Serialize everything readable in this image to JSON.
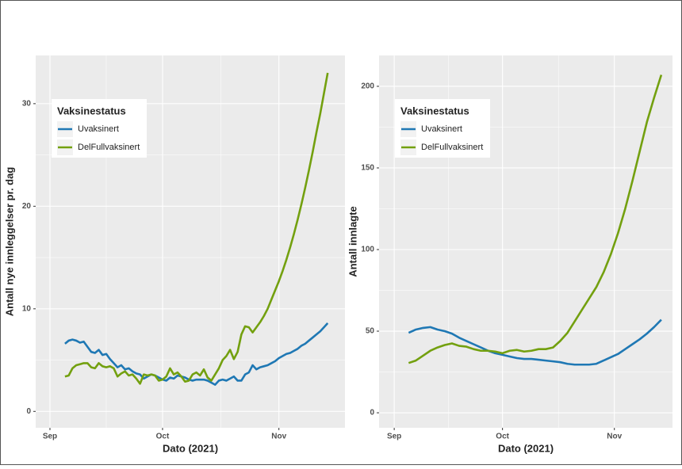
{
  "chart_data": [
    {
      "type": "line",
      "x_label": "Dato (2021)",
      "y_label": "Antall nye innleggelser pr. dag",
      "legend_title": "Vaksinestatus",
      "legend": "top-left",
      "grid": true,
      "x": [
        4,
        5,
        6,
        7,
        8,
        9,
        10,
        11,
        12,
        13,
        14,
        15,
        16,
        17,
        18,
        19,
        20,
        21,
        22,
        23,
        24,
        25,
        26,
        27,
        28,
        29,
        30,
        31,
        32,
        33,
        34,
        35,
        36,
        37,
        38,
        39,
        40,
        41,
        42,
        43,
        44,
        45,
        46,
        47,
        48,
        49,
        50,
        51,
        52,
        53,
        54,
        55,
        56,
        57,
        58,
        59,
        60,
        61,
        62,
        63,
        64,
        65,
        66,
        67,
        68,
        69,
        70,
        71,
        72,
        73,
        74
      ],
      "series": [
        {
          "name": "Uvaksinert",
          "color": "#1f78b4",
          "values": [
            6.6,
            6.9,
            7.0,
            6.9,
            6.7,
            6.8,
            6.3,
            5.8,
            5.7,
            6.0,
            5.5,
            5.6,
            5.1,
            4.7,
            4.3,
            4.5,
            4.1,
            4.2,
            3.9,
            3.7,
            3.6,
            3.2,
            3.4,
            3.6,
            3.5,
            3.3,
            3.1,
            3.0,
            3.3,
            3.2,
            3.5,
            3.4,
            3.3,
            3.1,
            3.0,
            3.1,
            3.1,
            3.1,
            3.0,
            2.8,
            2.6,
            3.0,
            3.1,
            3.0,
            3.2,
            3.4,
            3.0,
            3.0,
            3.6,
            3.8,
            4.5,
            4.1,
            4.3,
            4.4,
            4.5,
            4.7,
            4.9,
            5.2,
            5.4,
            5.6,
            5.7,
            5.9,
            6.1,
            6.4,
            6.6,
            6.9,
            7.2,
            7.5,
            7.8,
            8.2,
            8.6
          ]
        },
        {
          "name": "DelFullvaksinert",
          "color": "#73a00f",
          "values": [
            3.4,
            3.5,
            4.2,
            4.5,
            4.6,
            4.7,
            4.7,
            4.3,
            4.2,
            4.7,
            4.4,
            4.3,
            4.4,
            4.2,
            3.4,
            3.7,
            3.9,
            3.5,
            3.6,
            3.2,
            2.7,
            3.6,
            3.5,
            3.6,
            3.5,
            3.0,
            3.1,
            3.4,
            4.2,
            3.6,
            3.8,
            3.4,
            2.9,
            3.0,
            3.6,
            3.8,
            3.5,
            4.1,
            3.3,
            3.0,
            3.6,
            4.2,
            5.0,
            5.4,
            6.0,
            5.1,
            5.8,
            7.5,
            8.3,
            8.2,
            7.7,
            8.2,
            8.7,
            9.3,
            10.0,
            10.9,
            11.8,
            12.7,
            13.7,
            14.8,
            16.0,
            17.3,
            18.7,
            20.2,
            21.8,
            23.5,
            25.3,
            27.2,
            29.0,
            31.0,
            33.0
          ]
        }
      ],
      "xlim": [
        -3.8,
        78.6
      ],
      "xticks": [
        {
          "value": 0,
          "label": "Sep"
        },
        {
          "value": 30,
          "label": "Oct"
        },
        {
          "value": 61,
          "label": "Nov"
        }
      ],
      "ylim": [
        -1.6,
        34.7
      ],
      "yticks": [
        0,
        10,
        20,
        30
      ]
    },
    {
      "type": "line",
      "x_label": "Dato (2021)",
      "y_label": "Antall innlagte",
      "legend_title": "Vaksinestatus",
      "legend": "top-left",
      "grid": true,
      "x": [
        4,
        6,
        8,
        10,
        12,
        14,
        16,
        18,
        20,
        22,
        24,
        26,
        28,
        30,
        32,
        34,
        36,
        38,
        40,
        42,
        44,
        46,
        48,
        50,
        52,
        54,
        56,
        58,
        60,
        62,
        64,
        66,
        68,
        70,
        72,
        74
      ],
      "series": [
        {
          "name": "Uvaksinert",
          "color": "#1f78b4",
          "values": [
            49,
            51,
            52,
            52.5,
            51,
            50,
            48.5,
            46,
            44,
            42,
            40,
            38,
            36.5,
            35.5,
            34.5,
            33.5,
            33,
            33,
            32.5,
            32,
            31.5,
            31,
            30,
            29.5,
            29.5,
            29.5,
            30,
            32,
            34,
            36,
            39,
            42,
            45,
            48.5,
            52.5,
            57
          ]
        },
        {
          "name": "DelFullvaksinert",
          "color": "#73a00f",
          "values": [
            30.5,
            32,
            35,
            38,
            40,
            41.5,
            42.5,
            41,
            40.5,
            39,
            38,
            38,
            37.5,
            36.5,
            38,
            38.5,
            37.5,
            38,
            39,
            39,
            40,
            44,
            49,
            56,
            63,
            70,
            77,
            86,
            97,
            110,
            125,
            142,
            160,
            178,
            193,
            207
          ]
        }
      ],
      "xlim": [
        -4.2,
        77.1
      ],
      "xticks": [
        {
          "value": 0,
          "label": "Sep"
        },
        {
          "value": 30,
          "label": "Oct"
        },
        {
          "value": 61,
          "label": "Nov"
        }
      ],
      "ylim": [
        -9.2,
        218.9
      ],
      "yticks": [
        0,
        50,
        100,
        150,
        200
      ]
    }
  ]
}
